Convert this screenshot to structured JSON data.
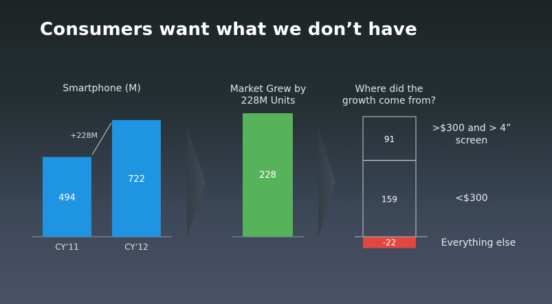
{
  "title": "Consumers want what we don’t have",
  "colors": {
    "blue": "#1e94e2",
    "green": "#57b35a",
    "red": "#e0473f"
  },
  "chart_data": [
    {
      "type": "bar",
      "title": "Smartphone (M)",
      "categories": [
        "CY’11",
        "CY’12"
      ],
      "values": [
        494,
        722
      ],
      "value_labels": [
        "494",
        "722"
      ],
      "annotation": "+228M"
    },
    {
      "type": "bar",
      "title": "Market Grew by 228M Units",
      "categories": [
        ""
      ],
      "values": [
        228
      ],
      "value_labels": [
        "228"
      ]
    },
    {
      "type": "bar",
      "title": "Where did the growth come from?",
      "stacked": true,
      "segments": [
        {
          "name": ">$300 and > 4” screen",
          "value": 91,
          "label": "91"
        },
        {
          "name": "<$300",
          "value": 159,
          "label": "159"
        },
        {
          "name": "Everything else",
          "value": -22,
          "label": "-22"
        }
      ]
    }
  ]
}
